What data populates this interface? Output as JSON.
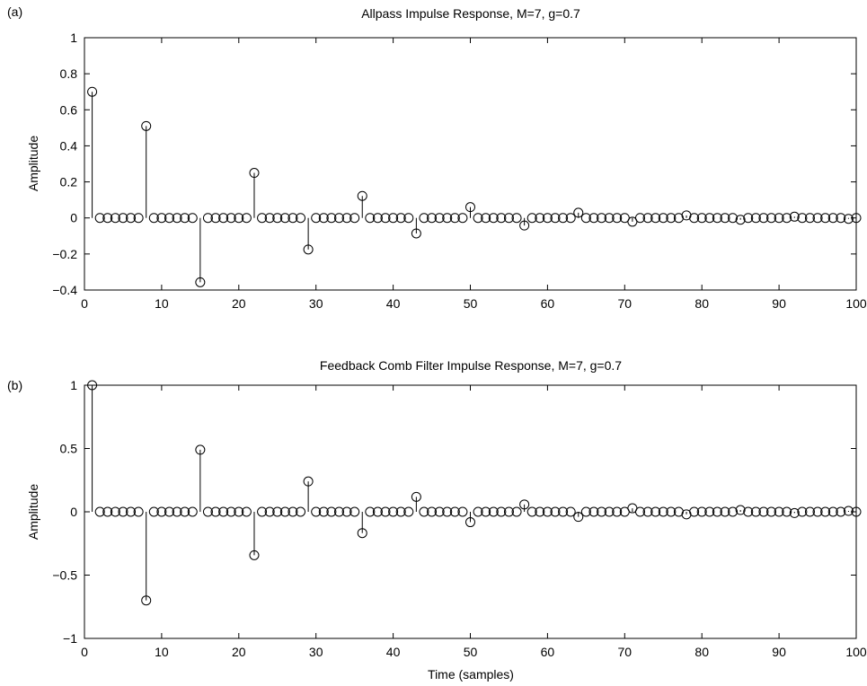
{
  "chart_data": [
    {
      "type": "stem",
      "panel_label": "(a)",
      "title": "Allpass Impulse Response, M=7, g=0.7",
      "xlabel": "",
      "ylabel": "Amplitude",
      "xlim": [
        0,
        100
      ],
      "ylim": [
        -0.4,
        1
      ],
      "xticks": [
        0,
        10,
        20,
        30,
        40,
        50,
        60,
        70,
        80,
        90,
        100
      ],
      "xtick_labels": [
        "0",
        "10",
        "20",
        "30",
        "40",
        "50",
        "60",
        "70",
        "80",
        "90",
        "100"
      ],
      "yticks": [
        -0.4,
        -0.2,
        0,
        0.2,
        0.4,
        0.6,
        0.8,
        1
      ],
      "ytick_labels": [
        "−0.4",
        "−0.2",
        "0",
        "0.2",
        "0.4",
        "0.6",
        "0.8",
        "1"
      ],
      "grid": false,
      "marker": "circle",
      "x_start": 1,
      "x_end": 100,
      "nonzero": [
        {
          "x": 1,
          "y": 0.7
        },
        {
          "x": 8,
          "y": 0.51
        },
        {
          "x": 15,
          "y": -0.357
        },
        {
          "x": 22,
          "y": 0.25
        },
        {
          "x": 29,
          "y": -0.175
        },
        {
          "x": 36,
          "y": 0.122
        },
        {
          "x": 43,
          "y": -0.086
        },
        {
          "x": 50,
          "y": 0.06
        },
        {
          "x": 57,
          "y": -0.042
        },
        {
          "x": 64,
          "y": 0.029
        },
        {
          "x": 71,
          "y": -0.021
        },
        {
          "x": 78,
          "y": 0.014
        },
        {
          "x": 85,
          "y": -0.01
        },
        {
          "x": 92,
          "y": 0.007
        },
        {
          "x": 99,
          "y": -0.005
        }
      ]
    },
    {
      "type": "stem",
      "panel_label": "(b)",
      "title": "Feedback Comb Filter Impulse Response, M=7, g=0.7",
      "xlabel": "Time (samples)",
      "ylabel": "Amplitude",
      "xlim": [
        0,
        100
      ],
      "ylim": [
        -1,
        1
      ],
      "xticks": [
        0,
        10,
        20,
        30,
        40,
        50,
        60,
        70,
        80,
        90,
        100
      ],
      "xtick_labels": [
        "0",
        "10",
        "20",
        "30",
        "40",
        "50",
        "60",
        "70",
        "80",
        "90",
        "100"
      ],
      "yticks": [
        -1,
        -0.5,
        0,
        0.5,
        1
      ],
      "ytick_labels": [
        "−1",
        "−0.5",
        "0",
        "0.5",
        "1"
      ],
      "grid": false,
      "marker": "circle",
      "x_start": 1,
      "x_end": 100,
      "nonzero": [
        {
          "x": 1,
          "y": 1
        },
        {
          "x": 8,
          "y": -0.7
        },
        {
          "x": 15,
          "y": 0.49
        },
        {
          "x": 22,
          "y": -0.343
        },
        {
          "x": 29,
          "y": 0.24
        },
        {
          "x": 36,
          "y": -0.168
        },
        {
          "x": 43,
          "y": 0.118
        },
        {
          "x": 50,
          "y": -0.082
        },
        {
          "x": 57,
          "y": 0.058
        },
        {
          "x": 64,
          "y": -0.04
        },
        {
          "x": 71,
          "y": 0.028
        },
        {
          "x": 78,
          "y": -0.02
        },
        {
          "x": 85,
          "y": 0.014
        },
        {
          "x": 92,
          "y": -0.01
        },
        {
          "x": 99,
          "y": 0.007
        }
      ]
    }
  ]
}
